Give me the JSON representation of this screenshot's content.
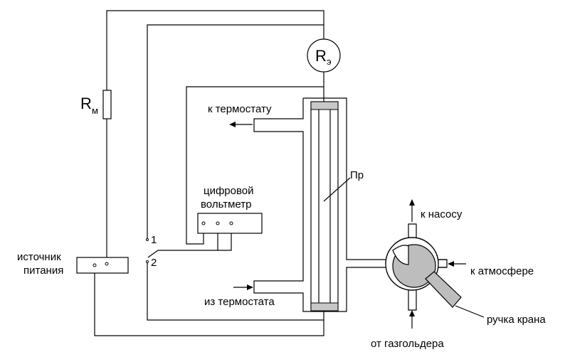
{
  "labels": {
    "rm_main": "R",
    "rm_sub": "м",
    "re_main": "R",
    "re_sub": "э",
    "k_termostatu": "к термостату",
    "iz_termostata": "из термостата",
    "voltmeter_line1": "цифровой",
    "voltmeter_line2": "вольтметр",
    "pr": "Пр",
    "k_nasosu": "к насосу",
    "k_atmosfere": "к атмосфере",
    "ot_gazgoldera": "от газгольдера",
    "ruchka_krana": "ручка крана",
    "source_line1": "источник",
    "source_line2": "питания",
    "switch_1": "1",
    "switch_2": "2"
  },
  "colors": {
    "line": "#000000",
    "valve_fill": "#bdbdbd",
    "electrode_fill": "#c8c8c8",
    "background": "#ffffff"
  }
}
